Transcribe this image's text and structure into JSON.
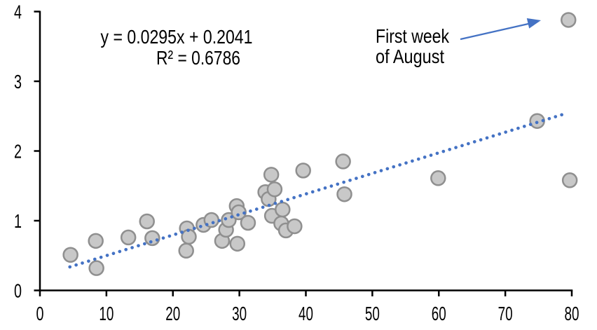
{
  "chart_data": {
    "type": "scatter",
    "title": "",
    "xlabel": "",
    "ylabel": "",
    "x_axis": {
      "min": 0,
      "max": 80,
      "tick_interval": 10,
      "ticks": [
        0,
        10,
        20,
        30,
        40,
        50,
        60,
        70,
        80
      ]
    },
    "y_axis": {
      "min": 0,
      "max": 4,
      "tick_interval": 1,
      "ticks": [
        0,
        1,
        2,
        3,
        4
      ]
    },
    "grid": "off",
    "points": [
      [
        4.6,
        0.51
      ],
      [
        8.4,
        0.71
      ],
      [
        8.5,
        0.32
      ],
      [
        13.3,
        0.76
      ],
      [
        16.1,
        0.99
      ],
      [
        16.9,
        0.75
      ],
      [
        22.1,
        0.89
      ],
      [
        22.4,
        0.77
      ],
      [
        22.0,
        0.57
      ],
      [
        24.6,
        0.94
      ],
      [
        25.8,
        1.01
      ],
      [
        27.4,
        0.71
      ],
      [
        28.0,
        0.87
      ],
      [
        28.4,
        1.01
      ],
      [
        29.6,
        1.21
      ],
      [
        29.9,
        1.12
      ],
      [
        29.7,
        0.67
      ],
      [
        31.3,
        0.97
      ],
      [
        33.9,
        1.41
      ],
      [
        34.4,
        1.31
      ],
      [
        34.8,
        1.66
      ],
      [
        35.3,
        1.45
      ],
      [
        34.9,
        1.07
      ],
      [
        36.5,
        1.16
      ],
      [
        36.3,
        0.96
      ],
      [
        37.0,
        0.86
      ],
      [
        38.3,
        0.92
      ],
      [
        39.6,
        1.72
      ],
      [
        45.6,
        1.85
      ],
      [
        45.8,
        1.38
      ],
      [
        59.9,
        1.61
      ],
      [
        74.8,
        2.43
      ],
      [
        79.5,
        3.88
      ],
      [
        79.7,
        1.58
      ]
    ],
    "marker": {
      "shape": "circle",
      "fill": "#c8c8c8",
      "stroke": "#8f8f8f"
    },
    "trendline": {
      "type": "linear",
      "slope": 0.0295,
      "intercept": 0.2041,
      "x_start": 4.5,
      "x_end": 78.8,
      "style": "dotted",
      "color": "#4472c4",
      "equation_label": "y = 0.0295x + 0.2041",
      "r2_label": "R² = 0.6786"
    },
    "annotation": {
      "line1": "First week",
      "line2": "of August",
      "color": "#4472c4",
      "points_to": [
        79.5,
        3.88
      ]
    },
    "axis_color": "#000000",
    "text_color": "#000000",
    "background": "#ffffff",
    "legend": "none"
  }
}
